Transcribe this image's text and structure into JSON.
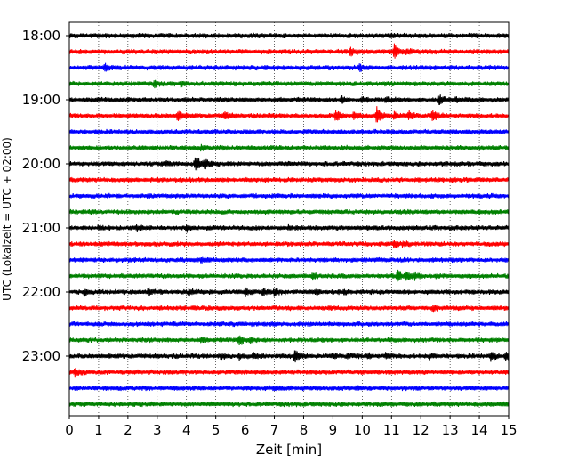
{
  "chart_data": {
    "type": "line",
    "title": "",
    "xlabel": "Zeit  [min]",
    "ylabel": "UTC (Lokalzeit = UTC + 02:00)",
    "xlim": [
      0,
      15
    ],
    "x_ticks": [
      0,
      1,
      2,
      3,
      4,
      5,
      6,
      7,
      8,
      9,
      10,
      11,
      12,
      13,
      14,
      15
    ],
    "y_ticks": [
      "18:00",
      "19:00",
      "20:00",
      "21:00",
      "22:00",
      "23:00"
    ],
    "grid": "vertical dotted",
    "trace_colors": [
      "#000000",
      "#ff0000",
      "#0000ff",
      "#008000"
    ],
    "traces": [
      {
        "start": "18:00",
        "events": [
          [
            11.0,
            0.4
          ]
        ]
      },
      {
        "start": "18:15",
        "events": [
          [
            9.6,
            1.2
          ],
          [
            11.1,
            2.4
          ],
          [
            11.5,
            0.8
          ]
        ]
      },
      {
        "start": "18:30",
        "events": [
          [
            1.2,
            1.4
          ],
          [
            9.9,
            1.0
          ]
        ]
      },
      {
        "start": "18:45",
        "events": [
          [
            2.9,
            0.8
          ],
          [
            3.8,
            0.6
          ]
        ]
      },
      {
        "start": "19:00",
        "events": [
          [
            9.3,
            0.8
          ],
          [
            10.0,
            0.6
          ],
          [
            10.8,
            0.8
          ],
          [
            12.6,
            1.8
          ],
          [
            13.2,
            0.6
          ]
        ]
      },
      {
        "start": "19:15",
        "events": [
          [
            3.7,
            1.4
          ],
          [
            5.3,
            1.0
          ],
          [
            9.1,
            1.6
          ],
          [
            9.7,
            0.8
          ],
          [
            10.5,
            2.4
          ],
          [
            11.1,
            0.8
          ],
          [
            11.6,
            1.2
          ],
          [
            12.4,
            1.4
          ]
        ]
      },
      {
        "start": "19:30",
        "events": []
      },
      {
        "start": "19:45",
        "events": [
          [
            4.5,
            0.6
          ]
        ]
      },
      {
        "start": "20:00",
        "events": [
          [
            3.3,
            0.6
          ],
          [
            4.3,
            2.8
          ],
          [
            4.6,
            1.4
          ]
        ]
      },
      {
        "start": "20:15",
        "events": []
      },
      {
        "start": "20:30",
        "events": []
      },
      {
        "start": "20:45",
        "events": []
      },
      {
        "start": "21:00",
        "events": [
          [
            1.0,
            0.6
          ],
          [
            2.3,
            0.6
          ],
          [
            4.0,
            0.8
          ],
          [
            7.5,
            0.5
          ]
        ]
      },
      {
        "start": "21:15",
        "events": [
          [
            11.1,
            0.8
          ],
          [
            11.4,
            0.6
          ]
        ]
      },
      {
        "start": "21:30",
        "events": [
          [
            4.5,
            0.8
          ]
        ]
      },
      {
        "start": "21:45",
        "events": [
          [
            8.3,
            1.0
          ],
          [
            11.2,
            1.6
          ],
          [
            11.5,
            1.2
          ],
          [
            11.8,
            0.8
          ],
          [
            12.5,
            0.4
          ]
        ]
      },
      {
        "start": "22:00",
        "events": [
          [
            0.5,
            0.8
          ],
          [
            2.7,
            1.0
          ],
          [
            4.1,
            0.8
          ],
          [
            6.0,
            1.0
          ],
          [
            6.6,
            0.8
          ],
          [
            7.0,
            1.0
          ],
          [
            8.4,
            0.6
          ],
          [
            9.4,
            0.5
          ]
        ]
      },
      {
        "start": "22:15",
        "events": [
          [
            12.4,
            0.6
          ]
        ]
      },
      {
        "start": "22:30",
        "events": []
      },
      {
        "start": "22:45",
        "events": [
          [
            4.5,
            0.6
          ],
          [
            5.8,
            1.2
          ],
          [
            6.2,
            0.6
          ]
        ]
      },
      {
        "start": "23:00",
        "events": [
          [
            5.2,
            0.8
          ],
          [
            5.8,
            0.6
          ],
          [
            6.3,
            0.8
          ],
          [
            7.7,
            1.8
          ],
          [
            9.0,
            0.6
          ],
          [
            9.5,
            0.6
          ],
          [
            10.2,
            0.6
          ],
          [
            10.8,
            0.8
          ],
          [
            12.3,
            0.6
          ],
          [
            14.4,
            1.2
          ],
          [
            14.9,
            1.2
          ]
        ]
      },
      {
        "start": "23:15",
        "events": [
          [
            0.2,
            1.0
          ]
        ]
      },
      {
        "start": "23:30",
        "events": [
          [
            7.0,
            0.5
          ],
          [
            9.8,
            0.5
          ]
        ]
      },
      {
        "start": "23:45",
        "events": [
          [
            14.8,
            0.5
          ]
        ]
      }
    ]
  }
}
